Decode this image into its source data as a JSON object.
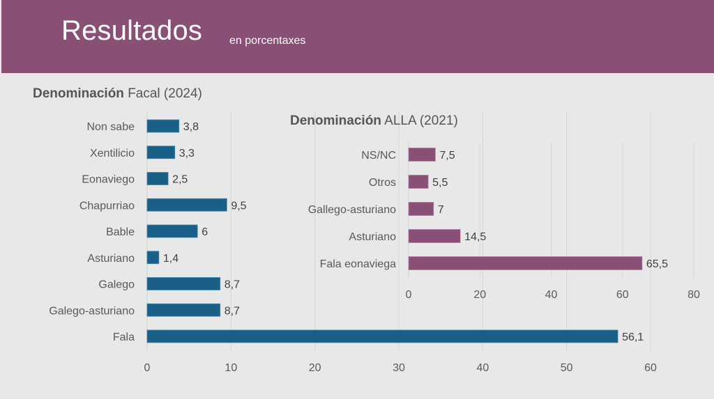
{
  "header": {
    "title": "Resultados",
    "subtitle": "en porcentaxes",
    "color": "#894f75"
  },
  "chart_data": [
    {
      "type": "bar",
      "orientation": "horizontal",
      "title_bold": "Denominación",
      "title_rest": "Facal (2024)",
      "categories": [
        "Non sabe",
        "Xentilicio",
        "Eonaviego",
        "Chapurriao",
        "Bable",
        "Asturiano",
        "Galego",
        "Galego-asturiano",
        "Fala"
      ],
      "values": [
        3.8,
        3.3,
        2.5,
        9.5,
        6,
        1.4,
        8.7,
        8.7,
        56.1
      ],
      "value_labels": [
        "3,8",
        "3,3",
        "2,5",
        "9,5",
        "6",
        "1,4",
        "8,7",
        "8,7",
        "56,1"
      ],
      "xlim": [
        0,
        60
      ],
      "xticks": [
        0,
        10,
        20,
        30,
        40,
        50,
        60
      ],
      "xlabel": "",
      "ylabel": "",
      "grid": true,
      "color": "#1a5f85"
    },
    {
      "type": "bar",
      "orientation": "horizontal",
      "title_bold": "Denominación",
      "title_rest": "ALLA (2021)",
      "categories": [
        "NS/NC",
        "Otros",
        "Gallego-asturiano",
        "Asturiano",
        "Fala eonaviega"
      ],
      "values": [
        7.5,
        5.5,
        7,
        14.5,
        65.5
      ],
      "value_labels": [
        "7,5",
        "5,5",
        "7",
        "14,5",
        "65,5"
      ],
      "xlim": [
        0,
        80
      ],
      "xticks": [
        0,
        20,
        40,
        60,
        80
      ],
      "xlabel": "",
      "ylabel": "",
      "grid": true,
      "color": "#894f75"
    }
  ]
}
